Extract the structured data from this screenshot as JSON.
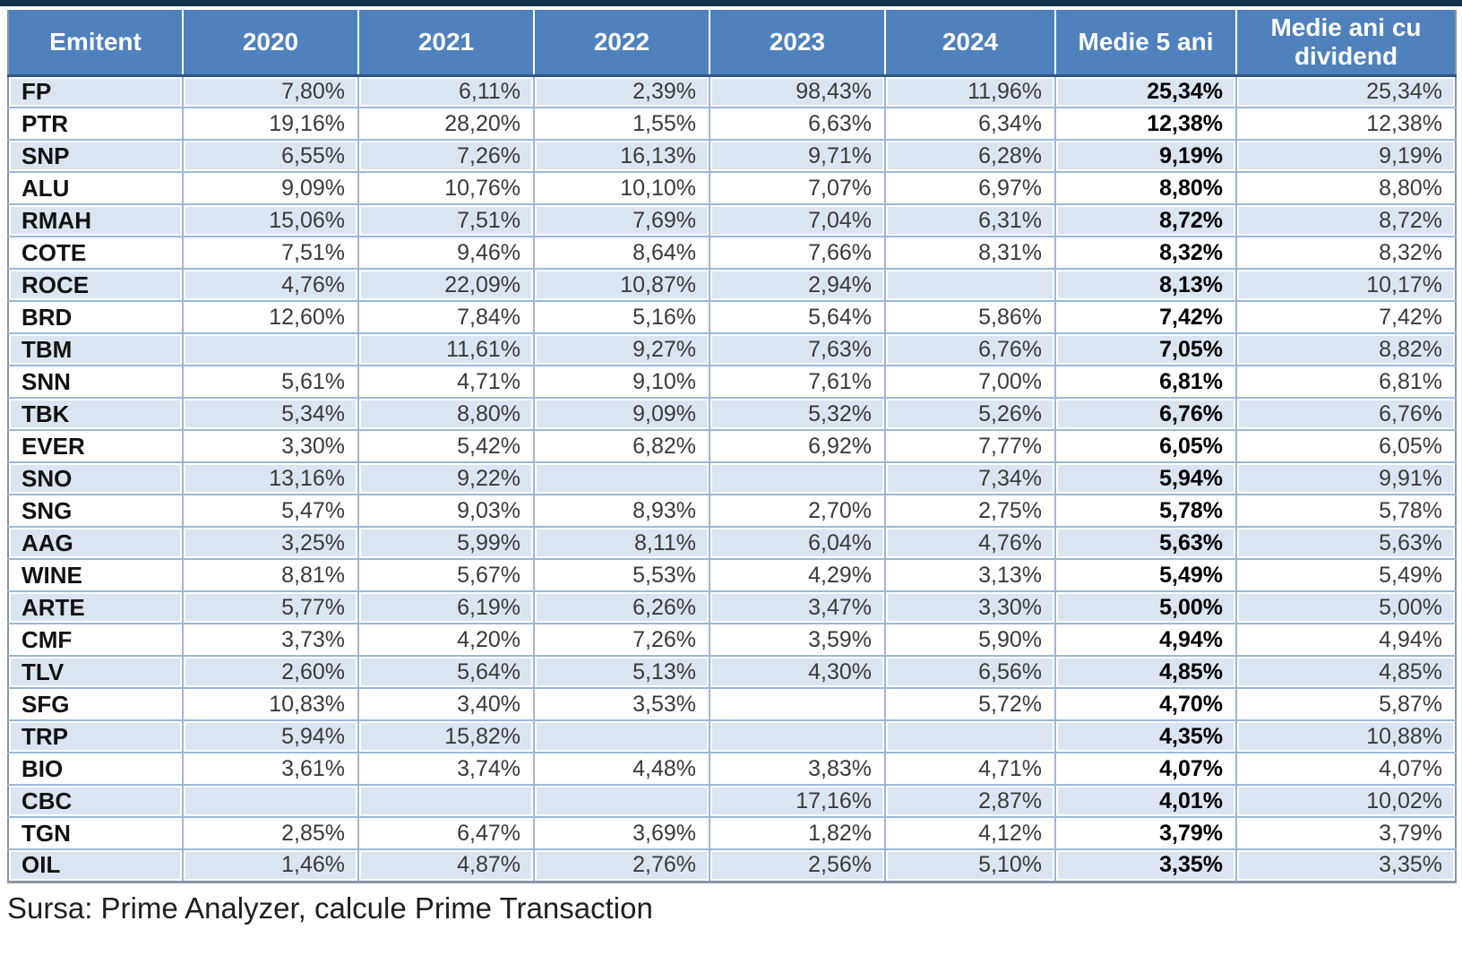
{
  "chart_data": {
    "type": "table",
    "columns": [
      "Emitent",
      "2020",
      "2021",
      "2022",
      "2023",
      "2024",
      "Medie 5 ani",
      "Medie ani cu dividend"
    ],
    "rows": [
      [
        "FP",
        "7,80%",
        "6,11%",
        "2,39%",
        "98,43%",
        "11,96%",
        "25,34%",
        "25,34%"
      ],
      [
        "PTR",
        "19,16%",
        "28,20%",
        "1,55%",
        "6,63%",
        "6,34%",
        "12,38%",
        "12,38%"
      ],
      [
        "SNP",
        "6,55%",
        "7,26%",
        "16,13%",
        "9,71%",
        "6,28%",
        "9,19%",
        "9,19%"
      ],
      [
        "ALU",
        "9,09%",
        "10,76%",
        "10,10%",
        "7,07%",
        "6,97%",
        "8,80%",
        "8,80%"
      ],
      [
        "RMAH",
        "15,06%",
        "7,51%",
        "7,69%",
        "7,04%",
        "6,31%",
        "8,72%",
        "8,72%"
      ],
      [
        "COTE",
        "7,51%",
        "9,46%",
        "8,64%",
        "7,66%",
        "8,31%",
        "8,32%",
        "8,32%"
      ],
      [
        "ROCE",
        "4,76%",
        "22,09%",
        "10,87%",
        "2,94%",
        "",
        "8,13%",
        "10,17%"
      ],
      [
        "BRD",
        "12,60%",
        "7,84%",
        "5,16%",
        "5,64%",
        "5,86%",
        "7,42%",
        "7,42%"
      ],
      [
        "TBM",
        "",
        "11,61%",
        "9,27%",
        "7,63%",
        "6,76%",
        "7,05%",
        "8,82%"
      ],
      [
        "SNN",
        "5,61%",
        "4,71%",
        "9,10%",
        "7,61%",
        "7,00%",
        "6,81%",
        "6,81%"
      ],
      [
        "TBK",
        "5,34%",
        "8,80%",
        "9,09%",
        "5,32%",
        "5,26%",
        "6,76%",
        "6,76%"
      ],
      [
        "EVER",
        "3,30%",
        "5,42%",
        "6,82%",
        "6,92%",
        "7,77%",
        "6,05%",
        "6,05%"
      ],
      [
        "SNO",
        "13,16%",
        "9,22%",
        "",
        "",
        "7,34%",
        "5,94%",
        "9,91%"
      ],
      [
        "SNG",
        "5,47%",
        "9,03%",
        "8,93%",
        "2,70%",
        "2,75%",
        "5,78%",
        "5,78%"
      ],
      [
        "AAG",
        "3,25%",
        "5,99%",
        "8,11%",
        "6,04%",
        "4,76%",
        "5,63%",
        "5,63%"
      ],
      [
        "WINE",
        "8,81%",
        "5,67%",
        "5,53%",
        "4,29%",
        "3,13%",
        "5,49%",
        "5,49%"
      ],
      [
        "ARTE",
        "5,77%",
        "6,19%",
        "6,26%",
        "3,47%",
        "3,30%",
        "5,00%",
        "5,00%"
      ],
      [
        "CMF",
        "3,73%",
        "4,20%",
        "7,26%",
        "3,59%",
        "5,90%",
        "4,94%",
        "4,94%"
      ],
      [
        "TLV",
        "2,60%",
        "5,64%",
        "5,13%",
        "4,30%",
        "6,56%",
        "4,85%",
        "4,85%"
      ],
      [
        "SFG",
        "10,83%",
        "3,40%",
        "3,53%",
        "",
        "5,72%",
        "4,70%",
        "5,87%"
      ],
      [
        "TRP",
        "5,94%",
        "15,82%",
        "",
        "",
        "",
        "4,35%",
        "10,88%"
      ],
      [
        "BIO",
        "3,61%",
        "3,74%",
        "4,48%",
        "3,83%",
        "4,71%",
        "4,07%",
        "4,07%"
      ],
      [
        "CBC",
        "",
        "",
        "",
        "17,16%",
        "2,87%",
        "4,01%",
        "10,02%"
      ],
      [
        "TGN",
        "2,85%",
        "6,47%",
        "3,69%",
        "1,82%",
        "4,12%",
        "3,79%",
        "3,79%"
      ],
      [
        "OIL",
        "1,46%",
        "4,87%",
        "2,76%",
        "2,56%",
        "5,10%",
        "3,35%",
        "3,35%"
      ]
    ]
  },
  "footer": {
    "source": "Sursa: Prime Analyzer, calcule Prime Transaction"
  },
  "colors": {
    "header_bg": "#4f81bd",
    "header_text": "#ffffff",
    "row_light": "#dbe5f1",
    "row_white": "#ffffff",
    "cell_border": "#9db7d9",
    "outer_border": "#8796a6",
    "top_strip": "#16304f",
    "header_bottom_border": "#2f5584"
  }
}
